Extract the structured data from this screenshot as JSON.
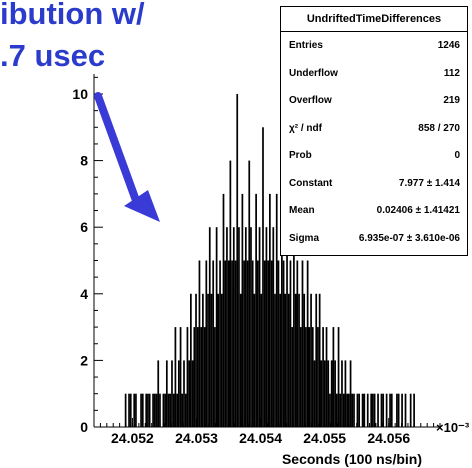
{
  "overlay": {
    "title_line1": "ibution w/",
    "title_line2": ".7 usec",
    "arrow_color": "#3a3ad6",
    "title_color": "#2b3ccc"
  },
  "stats_box": {
    "title": "UndriftedTimeDifferences",
    "rows": [
      {
        "label": "Entries",
        "value": "1246"
      },
      {
        "label": "Underflow",
        "value": "112"
      },
      {
        "label": "Overflow",
        "value": "219"
      },
      {
        "label": "χ² / ndf",
        "value": "858 / 270"
      },
      {
        "label": "Prob",
        "value": "0"
      },
      {
        "label": "Constant",
        "value": "7.977 ± 1.414"
      },
      {
        "label": "Mean",
        "value": "0.02406 ± 1.41421"
      },
      {
        "label": "Sigma",
        "value": "6.935e-07 ± 3.610e-06"
      }
    ]
  },
  "chart_data": {
    "type": "bar",
    "xlabel": "Seconds (100 ns/bin)",
    "ylabel": "",
    "x_multiplier": "×10⁻³",
    "xlim": [
      24.0514,
      24.0568
    ],
    "ylim": [
      0,
      10.6
    ],
    "x_ticks": [
      {
        "v": 24.052,
        "label": "24.052"
      },
      {
        "v": 24.053,
        "label": "24.053"
      },
      {
        "v": 24.054,
        "label": "24.054"
      },
      {
        "v": 24.055,
        "label": "24.055"
      },
      {
        "v": 24.056,
        "label": "24.056"
      }
    ],
    "y_ticks": [
      {
        "v": 0,
        "label": "0"
      },
      {
        "v": 2,
        "label": "2"
      },
      {
        "v": 4,
        "label": "4"
      },
      {
        "v": 6,
        "label": "6"
      },
      {
        "v": 8,
        "label": "8"
      },
      {
        "v": 10,
        "label": "10"
      }
    ],
    "bins": {
      "start": 24.05188,
      "width": 2.68e-05,
      "values": [
        1,
        0,
        1,
        1,
        0,
        1,
        1,
        0,
        0,
        1,
        1,
        0,
        1,
        1,
        1,
        0,
        1,
        1,
        1,
        2,
        1,
        0,
        1,
        1,
        2,
        1,
        1,
        2,
        1,
        3,
        1,
        2,
        3,
        1,
        2,
        1,
        3,
        2,
        4,
        2,
        3,
        4,
        3,
        5,
        3,
        4,
        3,
        5,
        4,
        6,
        4,
        5,
        3,
        6,
        4,
        5,
        4,
        7,
        5,
        6,
        5,
        8,
        5,
        6,
        5,
        10,
        6,
        4,
        7,
        5,
        6,
        5,
        8,
        6,
        5,
        4,
        7,
        5,
        6,
        4,
        9,
        5,
        6,
        5,
        7,
        5,
        6,
        4,
        7,
        5,
        4,
        6,
        5,
        4,
        6,
        4,
        5,
        3,
        6,
        4,
        5,
        4,
        3,
        5,
        4,
        3,
        5,
        3,
        4,
        3,
        2,
        4,
        3,
        4,
        2,
        3,
        2,
        3,
        2,
        1,
        2,
        3,
        2,
        1,
        3,
        1,
        2,
        1,
        2,
        1,
        1,
        2,
        1,
        1,
        0,
        1,
        1,
        0,
        1,
        1,
        0,
        1,
        0,
        1,
        1,
        1,
        0,
        1,
        0,
        1,
        1,
        0,
        1,
        0,
        1,
        1,
        0,
        0,
        1,
        1,
        0,
        1,
        0,
        1,
        0,
        0,
        1,
        0,
        1
      ]
    }
  }
}
